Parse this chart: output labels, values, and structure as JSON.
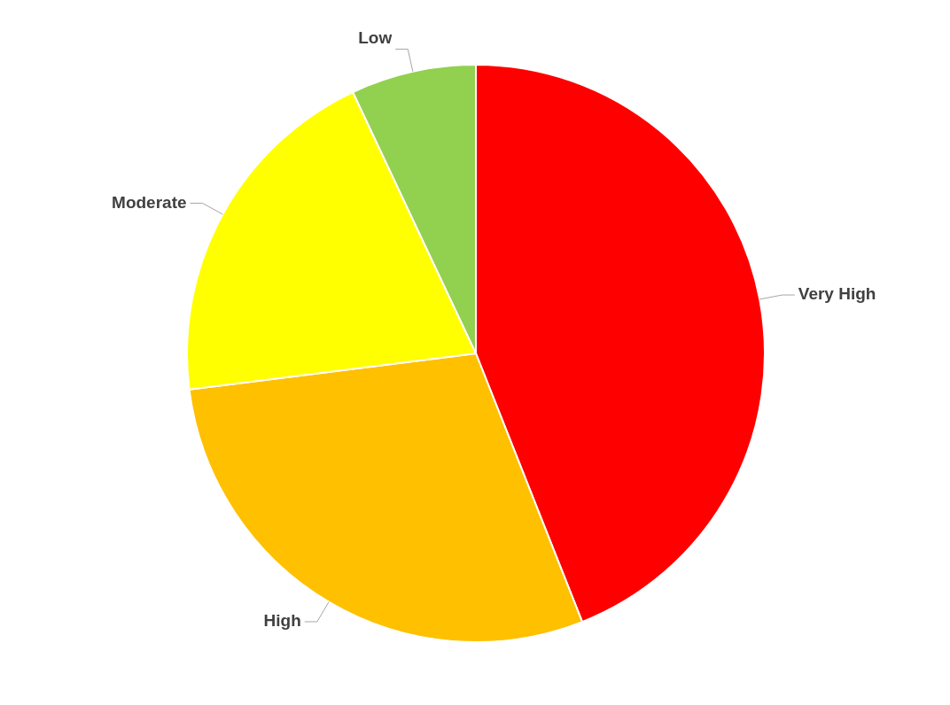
{
  "chart_data": {
    "type": "pie",
    "categories": [
      "Very High",
      "High",
      "Moderate",
      "Low"
    ],
    "values": [
      44,
      29,
      20,
      7
    ],
    "colors": [
      "#ff0000",
      "#ffc000",
      "#ffff00",
      "#92d050"
    ],
    "legend": false
  }
}
